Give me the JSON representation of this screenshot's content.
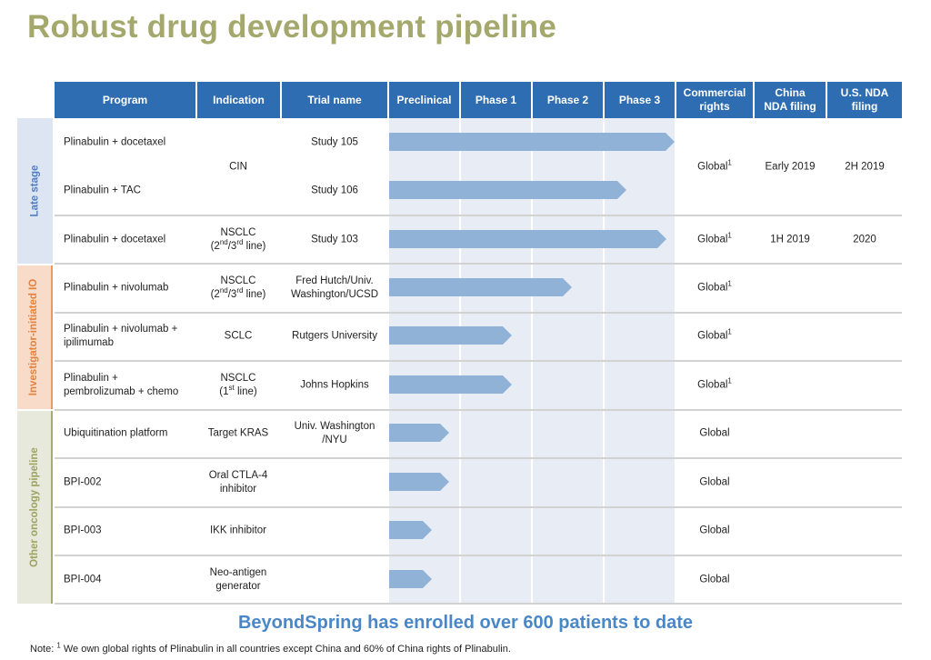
{
  "title": "Robust drug development pipeline",
  "headers": [
    "Program",
    "Indication",
    "Trial name",
    "Preclinical",
    "Phase 1",
    "Phase 2",
    "Phase 3",
    "Commercial rights",
    "China NDA filing",
    "U.S. NDA filing"
  ],
  "stages": [
    {
      "label": "Late stage",
      "color": "#dde5f2",
      "text_color": "#4f7cc0"
    },
    {
      "label": "Investigator-initiated IO",
      "color": "#f8dcc9",
      "text_color": "#e3823f",
      "border": "#e89a62"
    },
    {
      "label": "Other oncology pipeline",
      "color": "#e7e9dc",
      "text_color": "#9ea45f"
    }
  ],
  "rows": [
    {
      "program": "Plinabulin + docetaxel",
      "trial": "Study 105",
      "progress": 1.0
    },
    {
      "program": "Plinabulin + TAC",
      "trial": "Study 106",
      "progress": 0.83
    },
    {
      "program": "Plinabulin + docetaxel",
      "indication": "NSCLC",
      "ind_line": "(2nd/3rd line)",
      "trial": "Study 103",
      "progress": 0.97,
      "rights": "Global",
      "rights_sup": "1",
      "china": "1H 2019",
      "us": "2020"
    },
    {
      "program": "Plinabulin + nivolumab",
      "indication": "NSCLC",
      "ind_line": "(2nd/3rd line)",
      "trial": "Fred Hutch/Univ.",
      "trial2": "Washington/UCSD",
      "progress": 0.64,
      "rights": "Global",
      "rights_sup": "1"
    },
    {
      "program": "Plinabulin + nivolumab +",
      "program2": "ipilimumab",
      "indication": "SCLC",
      "trial": "Rutgers University",
      "progress": 0.43,
      "rights": "Global",
      "rights_sup": "1"
    },
    {
      "program": "Plinabulin +",
      "program2": "pembrolizumab + chemo",
      "indication": "NSCLC",
      "ind_line": "(1st line)",
      "trial": "Johns Hopkins",
      "progress": 0.43,
      "rights": "Global",
      "rights_sup": "1"
    },
    {
      "program": "Ubiquitination platform",
      "indication": "Target KRAS",
      "trial": "Univ. Washington",
      "trial2": "/NYU",
      "progress": 0.21,
      "rights": "Global"
    },
    {
      "program": "BPI-002",
      "indication": "Oral CTLA-4",
      "indication2": "inhibitor",
      "progress": 0.21,
      "rights": "Global"
    },
    {
      "program": "BPI-003",
      "indication": "IKK inhibitor",
      "progress": 0.15,
      "rights": "Global"
    },
    {
      "program": "BPI-004",
      "indication": "Neo-antigen",
      "indication2": "generator",
      "progress": 0.15,
      "rights": "Global"
    }
  ],
  "merged": {
    "indication": "CIN",
    "rights": "Global",
    "rights_sup": "1",
    "china": "Early 2019",
    "us": "2H 2019"
  },
  "footer_message": "BeyondSpring has enrolled over 600 patients to date",
  "note": {
    "prefix": "Note: ",
    "sup": "1",
    "text": " We own global rights of Plinabulin in all countries except China and 60% of China rights of Plinabulin."
  },
  "colors": {
    "header": "#2f6db3",
    "bar": "#8fb2d6",
    "phase_bg": "#e8ecf5",
    "title": "#a4a86c",
    "footer": "#4a87c6"
  }
}
